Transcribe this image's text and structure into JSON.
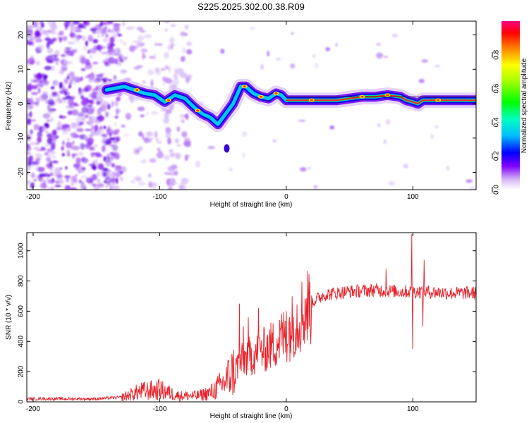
{
  "title": "S225.2025.302.00.38.R09",
  "chart_data": [
    {
      "type": "heatmap",
      "name": "spectrogram",
      "xlabel": "Height of straight line (km)",
      "ylabel": "Frequency (Hz)",
      "xlim": [
        -205,
        150
      ],
      "ylim": [
        -25,
        24
      ],
      "xticks": [
        -200,
        -100,
        0,
        100
      ],
      "yticks": [
        -20,
        -10,
        0,
        10,
        20
      ],
      "ridge": {
        "x": [
          -142,
          -135,
          -128,
          -120,
          -112,
          -104,
          -96,
          -88,
          -80,
          -73,
          -66,
          -60,
          -54,
          -48,
          -42,
          -36,
          -32,
          -26,
          -20,
          -14,
          -8,
          -4,
          0,
          2,
          6,
          20,
          40,
          60,
          70,
          80,
          90,
          95,
          100,
          104,
          108,
          115,
          125,
          135,
          150
        ],
        "y": [
          4,
          4.5,
          5,
          4,
          3,
          2.5,
          0.5,
          2.5,
          1.5,
          -1,
          -3,
          -4,
          -6,
          -3,
          0,
          5,
          5,
          3,
          2,
          1.5,
          3,
          2.5,
          1,
          1,
          1,
          1,
          1,
          2,
          2,
          2.5,
          2,
          1,
          0.5,
          0,
          1,
          1,
          1,
          1,
          1
        ]
      },
      "colorbar": {
        "label": "Normalized spectral amplitude",
        "range": [
          0,
          1
        ],
        "ticks": [
          "0.0",
          "0.2",
          "0.4",
          "0.6",
          "0.8"
        ]
      }
    },
    {
      "type": "line",
      "name": "snr",
      "xlabel": "Height of straight line (km)",
      "ylabel": "SNR (10 * v/v)",
      "xlim": [
        -205,
        150
      ],
      "ylim": [
        0,
        1120
      ],
      "xticks": [
        -200,
        -100,
        0,
        100
      ],
      "yticks": [
        0,
        200,
        400,
        600,
        800,
        1000
      ],
      "color": "#e8222a",
      "envelope": {
        "x": [
          -205,
          -150,
          -130,
          -115,
          -100,
          -85,
          -70,
          -60,
          -50,
          -42,
          -38,
          -30,
          -20,
          -10,
          0,
          10,
          20,
          30,
          50,
          70,
          90,
          110,
          130,
          150
        ],
        "y": [
          20,
          20,
          30,
          70,
          80,
          40,
          40,
          60,
          120,
          200,
          250,
          300,
          330,
          380,
          450,
          560,
          660,
          710,
          730,
          740,
          730,
          730,
          720,
          720
        ]
      },
      "spikes": [
        {
          "x": -37,
          "y": 650
        },
        {
          "x": -34,
          "y": 500
        },
        {
          "x": -30,
          "y": 560
        },
        {
          "x": -22,
          "y": 620
        },
        {
          "x": 0,
          "y": 600
        },
        {
          "x": 79,
          "y": 880
        },
        {
          "x": 99,
          "y": 1110
        },
        {
          "x": 100,
          "y": 350
        },
        {
          "x": 108,
          "y": 500
        },
        {
          "x": 109,
          "y": 940
        }
      ]
    }
  ]
}
